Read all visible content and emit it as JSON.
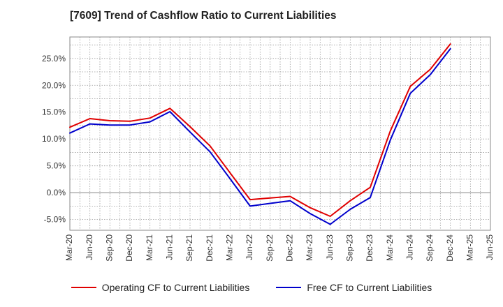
{
  "title": "[7609]  Trend of Cashflow Ratio to Current Liabilities",
  "colors": {
    "operating": "#e00000",
    "free": "#0000cc"
  },
  "chart_data": {
    "type": "line",
    "title": "[7609]  Trend of Cashflow Ratio to Current Liabilities",
    "x": [
      "Mar-20",
      "Jun-20",
      "Sep-20",
      "Dec-20",
      "Mar-21",
      "Jun-21",
      "Sep-21",
      "Dec-21",
      "Mar-22",
      "Jun-22",
      "Sep-22",
      "Dec-22",
      "Mar-23",
      "Jun-23",
      "Sep-23",
      "Dec-23",
      "Mar-24",
      "Jun-24",
      "Sep-24",
      "Dec-24",
      "Mar-25",
      "Jun-25"
    ],
    "ylim": [
      -7,
      29
    ],
    "yticks": [
      -5,
      0,
      5,
      10,
      15,
      20,
      25
    ],
    "ytick_labels": [
      "-5.0%",
      "0.0%",
      "5.0%",
      "10.0%",
      "15.0%",
      "20.0%",
      "25.0%"
    ],
    "grid": true,
    "legend_position": "bottom",
    "series": [
      {
        "name": "Operating CF to Current Liabilities",
        "color": "#e00000",
        "values": [
          12.2,
          13.8,
          13.4,
          13.3,
          13.9,
          15.7,
          12.3,
          8.7,
          3.7,
          -1.3,
          -1.0,
          -0.7,
          -2.8,
          -4.4,
          -1.5,
          1.0,
          11.5,
          19.8,
          23.0,
          27.7,
          null,
          null
        ]
      },
      {
        "name": "Free CF to Current Liabilities",
        "color": "#0000cc",
        "values": [
          11.1,
          12.8,
          12.6,
          12.6,
          13.2,
          15.1,
          11.3,
          7.6,
          2.6,
          -2.5,
          -2.0,
          -1.5,
          -3.9,
          -5.9,
          -3.1,
          -0.9,
          9.8,
          18.5,
          22.0,
          26.8,
          null,
          null
        ]
      }
    ]
  }
}
